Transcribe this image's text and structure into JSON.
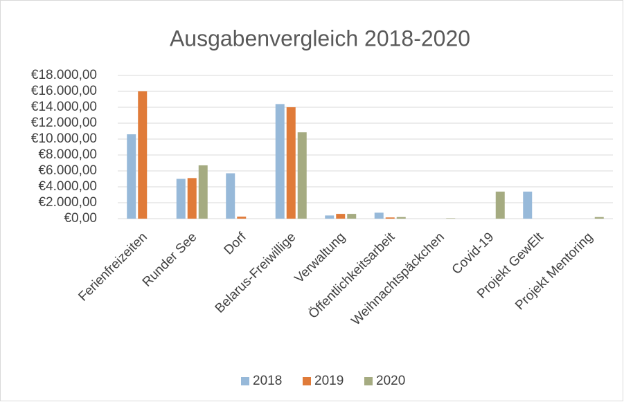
{
  "chart_data": {
    "type": "bar",
    "title": "Ausgabenvergleich 2018-2020",
    "categories": [
      "Ferienfreizeiten",
      "Runder See",
      "Dorf",
      "Belarus-Freiwillige",
      "Verwaltung",
      "Öffentlichkeitsarbeit",
      "Weihnachtspäckchen",
      "Covid-19",
      "Projekt GewElt",
      "Projekt Mentoring"
    ],
    "series": [
      {
        "name": "2018",
        "color": "#97b9d9",
        "values": [
          10600,
          5000,
          5700,
          14400,
          400,
          750,
          0,
          0,
          3400,
          0
        ]
      },
      {
        "name": "2019",
        "color": "#e07b39",
        "values": [
          16000,
          5100,
          250,
          14000,
          600,
          150,
          0,
          0,
          0,
          0
        ]
      },
      {
        "name": "2020",
        "color": "#a5ab81",
        "values": [
          0,
          6700,
          0,
          10850,
          600,
          200,
          50,
          3400,
          0,
          200
        ]
      }
    ],
    "ylim": [
      0,
      18000
    ],
    "yticks": [
      {
        "value": 0,
        "label": "€0,00"
      },
      {
        "value": 2000,
        "label": "€2.000,00"
      },
      {
        "value": 4000,
        "label": "€4.000,00"
      },
      {
        "value": 6000,
        "label": "€6.000,00"
      },
      {
        "value": 8000,
        "label": "€8.000,00"
      },
      {
        "value": 10000,
        "label": "€10.000,00"
      },
      {
        "value": 12000,
        "label": "€12.000,00"
      },
      {
        "value": 14000,
        "label": "€14.000,00"
      },
      {
        "value": 16000,
        "label": "€16.000,00"
      },
      {
        "value": 18000,
        "label": "€18.000,00"
      }
    ],
    "grid": true,
    "legend": "bottom"
  }
}
